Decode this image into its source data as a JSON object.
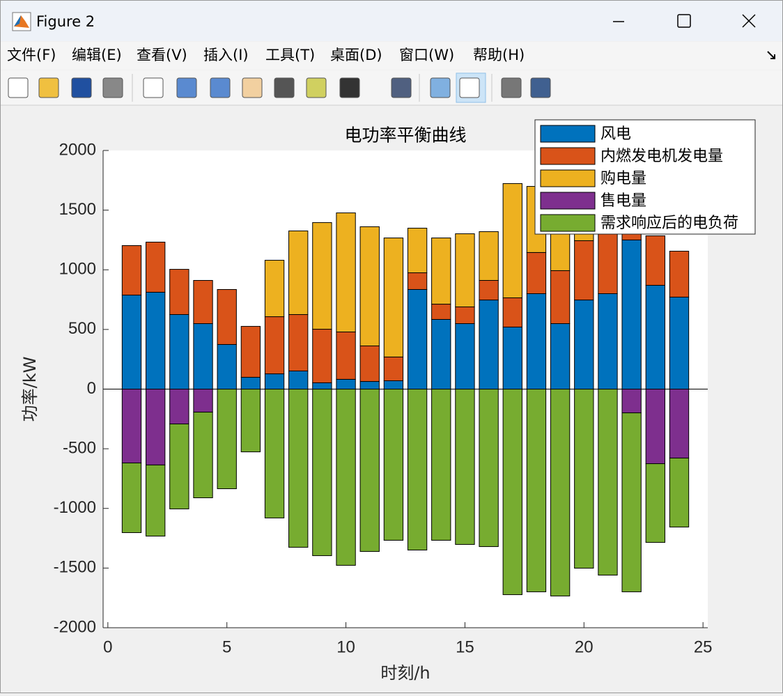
{
  "window": {
    "title": "Figure 2",
    "menu": [
      "文件(F)",
      "编辑(E)",
      "查看(V)",
      "插入(I)",
      "工具(T)",
      "桌面(D)",
      "窗口(W)",
      "帮助(H)"
    ]
  },
  "chart_data": {
    "type": "bar",
    "stacked": true,
    "title": "电功率平衡曲线",
    "x_label": "时刻/h",
    "y_label": "功率/kW",
    "x": [
      1,
      2,
      3,
      4,
      5,
      6,
      7,
      8,
      9,
      10,
      11,
      12,
      13,
      14,
      15,
      16,
      17,
      18,
      19,
      20,
      21,
      22,
      23,
      24
    ],
    "series": [
      {
        "name": "风电",
        "color": "#0072BD",
        "values": [
          788,
          812,
          625,
          549,
          374,
          99,
          128,
          152,
          53,
          82,
          64,
          70,
          835,
          584,
          549,
          747,
          520,
          800,
          549,
          747,
          800,
          1250,
          870,
          771
        ]
      },
      {
        "name": "内燃发电机发电量",
        "color": "#D95319",
        "values": [
          415,
          420,
          379,
          362,
          461,
          427,
          479,
          473,
          449,
          397,
          298,
          199,
          140,
          128,
          140,
          164,
          245,
          345,
          444,
          497,
          500,
          449,
          415,
          385
        ]
      },
      {
        "name": "购电量",
        "color": "#EDB120",
        "values": [
          0,
          0,
          0,
          0,
          0,
          0,
          473,
          701,
          894,
          998,
          999,
          998,
          374,
          555,
          613,
          409,
          958,
          554,
          741,
          257,
          259,
          0,
          0,
          0
        ]
      },
      {
        "name": "售电量",
        "color": "#7E2F8E",
        "values": [
          -619,
          -636,
          -292,
          -193,
          0,
          0,
          0,
          0,
          0,
          0,
          0,
          0,
          0,
          0,
          0,
          0,
          0,
          0,
          0,
          0,
          0,
          -199,
          -625,
          -578
        ]
      },
      {
        "name": "需求响应后的电负荷",
        "color": "#77AC30",
        "values": [
          -584,
          -596,
          -712,
          -718,
          -835,
          -526,
          -1080,
          -1326,
          -1396,
          -1477,
          -1361,
          -1267,
          -1349,
          -1267,
          -1302,
          -1320,
          -1723,
          -1699,
          -1734,
          -1501,
          -1559,
          -1500,
          -660,
          -578
        ]
      }
    ],
    "xlim": [
      -0.2,
      25.2
    ],
    "xticks": [
      0,
      5,
      10,
      15,
      20,
      25
    ],
    "ylim": [
      -2000,
      2000
    ],
    "yticks": [
      -2000,
      -1500,
      -1000,
      -500,
      0,
      500,
      1000,
      1500,
      2000
    ],
    "bar_width": 0.8,
    "legend": "upper right"
  }
}
